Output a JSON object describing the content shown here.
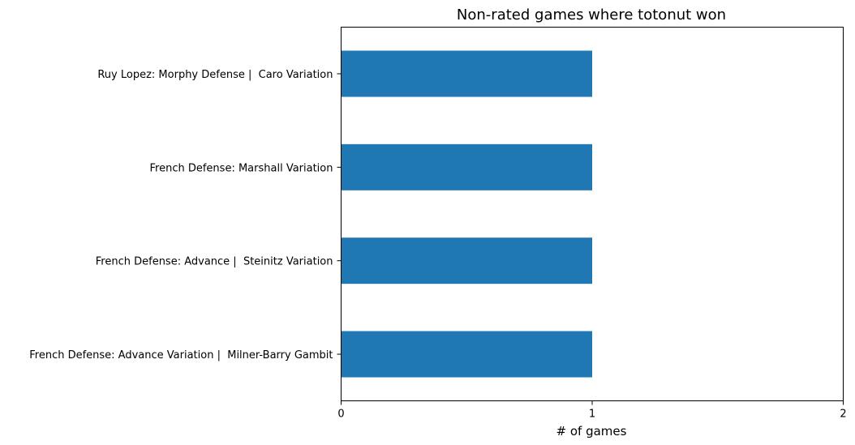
{
  "chart_data": {
    "type": "bar",
    "orientation": "horizontal",
    "title": "Non-rated games where totonut won",
    "xlabel": "# of games",
    "ylabel": "",
    "categories": [
      "Ruy Lopez: Morphy Defense |  Caro Variation",
      "French Defense: Marshall Variation",
      "French Defense: Advance |  Steinitz Variation",
      "French Defense: Advance Variation |  Milner-Barry Gambit"
    ],
    "values": [
      1,
      1,
      1,
      1
    ],
    "xlim": [
      0,
      2
    ],
    "xticks": [
      "0",
      "1",
      "2"
    ],
    "bar_color": "#1f77b4",
    "grid": false
  }
}
